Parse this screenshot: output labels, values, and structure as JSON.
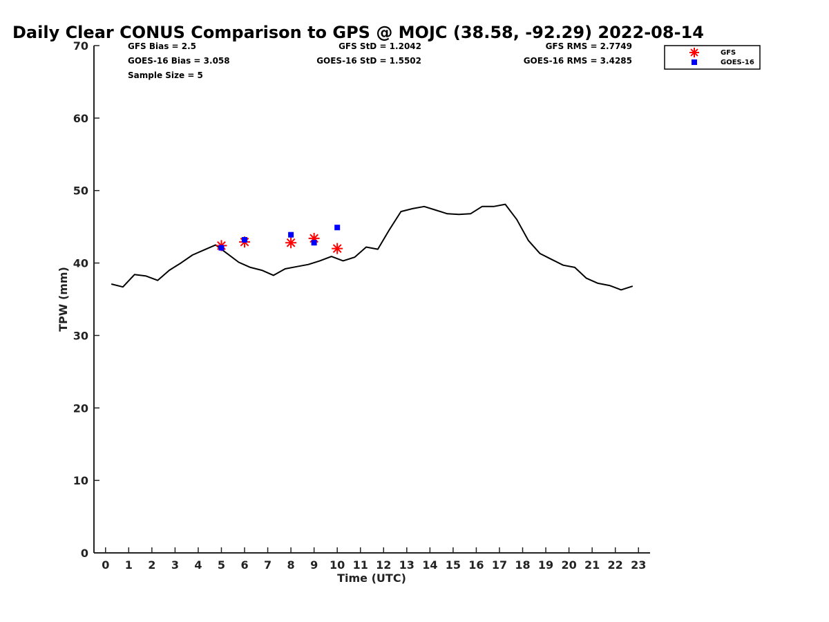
{
  "chart_data": {
    "type": "line",
    "title": "Daily Clear CONUS Comparison to GPS @ MOJC (38.58, -92.29) 2022-08-14",
    "xlabel": "Time (UTC)",
    "ylabel": "TPW (mm)",
    "xlim": [
      -0.5,
      23.5
    ],
    "ylim": [
      0,
      70
    ],
    "xticks": [
      0,
      1,
      2,
      3,
      4,
      5,
      6,
      7,
      8,
      9,
      10,
      11,
      12,
      13,
      14,
      15,
      16,
      17,
      18,
      19,
      20,
      21,
      22,
      23
    ],
    "yticks": [
      0,
      10,
      20,
      30,
      40,
      50,
      60,
      70
    ],
    "grid": false,
    "legend_position": "top-right, outside plot",
    "stats": {
      "gfs_bias": "GFS Bias = 2.5",
      "goes_bias": "GOES-16 Bias = 3.058",
      "sample_size": "Sample Size = 5",
      "gfs_std": "GFS StD = 1.2042",
      "goes_std": "GOES-16 StD = 1.5502",
      "gfs_rms": "GFS RMS = 2.7749",
      "goes_rms": "GOES-16 RMS = 3.4285"
    },
    "series": [
      {
        "marker": "line",
        "color": "#000000",
        "x": [
          0.25,
          0.75,
          1.25,
          1.75,
          2.25,
          2.75,
          3.25,
          3.75,
          4.25,
          4.75,
          5.25,
          5.75,
          6.25,
          6.75,
          7.25,
          7.75,
          8.25,
          8.75,
          9.25,
          9.75,
          10.25,
          10.75,
          11.25,
          11.75,
          12.25,
          12.75,
          13.25,
          13.75,
          14.25,
          14.75,
          15.25,
          15.75,
          16.25,
          16.75,
          17.25,
          17.75,
          18.25,
          18.75,
          19.25,
          19.75,
          20.25,
          20.75,
          21.25,
          21.75,
          22.25,
          22.75
        ],
        "values": [
          37.1,
          36.7,
          38.4,
          38.2,
          37.6,
          39.0,
          40.0,
          41.1,
          41.8,
          42.5,
          41.3,
          40.1,
          39.4,
          39.0,
          38.3,
          39.2,
          39.5,
          39.8,
          40.3,
          40.9,
          40.3,
          40.8,
          42.2,
          41.9,
          44.6,
          47.1,
          47.5,
          47.8,
          47.3,
          46.8,
          46.7,
          46.8,
          47.8,
          47.8,
          48.1,
          46.0,
          43.1,
          41.3,
          40.5,
          39.7,
          39.4,
          37.9,
          37.2,
          36.9,
          36.3,
          36.8
        ]
      },
      {
        "name": "GFS",
        "marker": "asterisk",
        "color": "#ff0000",
        "x": [
          5,
          6,
          8,
          9,
          10
        ],
        "values": [
          42.4,
          42.9,
          42.8,
          43.4,
          42.0
        ]
      },
      {
        "name": "GOES-16",
        "marker": "square",
        "color": "#0000ff",
        "x": [
          5,
          6,
          8,
          9,
          10
        ],
        "values": [
          42.1,
          43.2,
          43.9,
          42.8,
          44.9
        ]
      }
    ]
  }
}
